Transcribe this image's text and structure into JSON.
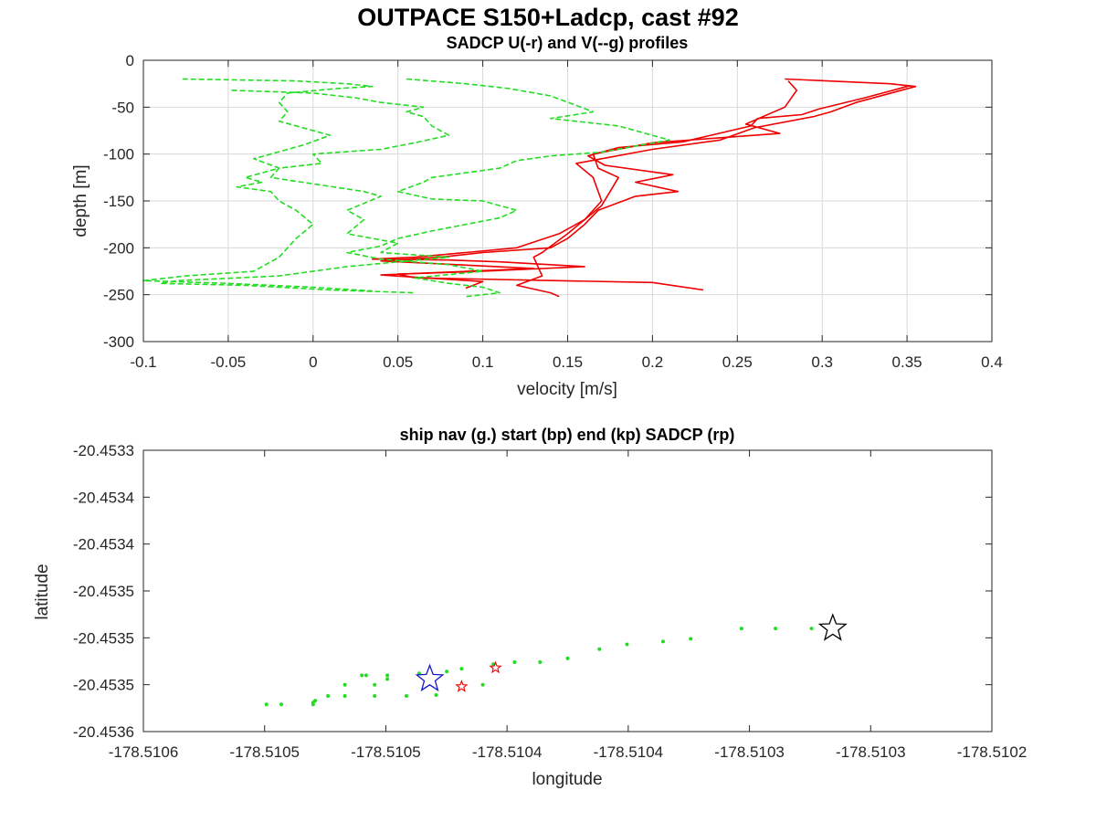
{
  "figure_title": "OUTPACE S150+Ladcp, cast #92",
  "chart_data": [
    {
      "type": "line",
      "title": "SADCP U(-r) and V(--g) profiles",
      "xlabel": "velocity [m/s]",
      "ylabel": "depth [m]",
      "xlim": [
        -0.1,
        0.4
      ],
      "ylim": [
        -300,
        0
      ],
      "xticks": [
        "-0.1",
        "-0.05",
        "0",
        "0.05",
        "0.1",
        "0.15",
        "0.2",
        "0.25",
        "0.3",
        "0.35",
        "0.4"
      ],
      "yticks": [
        "0",
        "-50",
        "-100",
        "-150",
        "-200",
        "-250",
        "-300"
      ],
      "grid": true,
      "colors": {
        "u": "#ee0000",
        "v": "#22dd22"
      },
      "series": [
        {
          "style": "solid",
          "color": "#ee0000",
          "points": [
            [
              0.278,
              -20
            ],
            [
              0.34,
              -25
            ],
            [
              0.355,
              -28
            ],
            [
              0.32,
              -45
            ],
            [
              0.305,
              -55
            ],
            [
              0.295,
              -60
            ],
            [
              0.26,
              -72
            ],
            [
              0.24,
              -85
            ],
            [
              0.2,
              -95
            ],
            [
              0.17,
              -105
            ],
            [
              0.155,
              -110
            ],
            [
              0.165,
              -125
            ],
            [
              0.17,
              -150
            ],
            [
              0.16,
              -170
            ],
            [
              0.15,
              -185
            ],
            [
              0.135,
              -205
            ],
            [
              0.13,
              -210
            ],
            [
              0.135,
              -230
            ],
            [
              0.12,
              -240
            ],
            [
              0.14,
              -248
            ],
            [
              0.145,
              -252
            ]
          ]
        },
        {
          "style": "solid",
          "color": "#ee0000",
          "points": [
            [
              0.28,
              -22
            ],
            [
              0.285,
              -32
            ],
            [
              0.278,
              -50
            ],
            [
              0.255,
              -68
            ],
            [
              0.275,
              -78
            ],
            [
              0.2,
              -88
            ],
            [
              0.165,
              -100
            ],
            [
              0.168,
              -115
            ],
            [
              0.18,
              -125
            ],
            [
              0.175,
              -140
            ],
            [
              0.17,
              -155
            ],
            [
              0.16,
              -170
            ],
            [
              0.145,
              -185
            ],
            [
              0.12,
              -200
            ],
            [
              0.09,
              -205
            ],
            [
              0.06,
              -210
            ],
            [
              0.035,
              -212
            ],
            [
              0.08,
              -213
            ],
            [
              0.11,
              -215
            ],
            [
              0.16,
              -220
            ],
            [
              0.1,
              -225
            ],
            [
              0.05,
              -228
            ],
            [
              0.06,
              -232
            ],
            [
              0.2,
              -237
            ],
            [
              0.23,
              -245
            ]
          ]
        },
        {
          "style": "solid",
          "color": "#ee0000",
          "points": [
            [
              0.352,
              -27
            ],
            [
              0.325,
              -40
            ],
            [
              0.298,
              -52
            ],
            [
              0.288,
              -58
            ],
            [
              0.262,
              -62
            ],
            [
              0.258,
              -70
            ],
            [
              0.218,
              -87
            ],
            [
              0.18,
              -93
            ],
            [
              0.162,
              -102
            ],
            [
              0.172,
              -112
            ],
            [
              0.212,
              -122
            ],
            [
              0.19,
              -130
            ],
            [
              0.215,
              -140
            ],
            [
              0.19,
              -145
            ],
            [
              0.168,
              -160
            ],
            [
              0.16,
              -175
            ],
            [
              0.15,
              -190
            ],
            [
              0.14,
              -200
            ],
            [
              0.1,
              -205
            ],
            [
              0.075,
              -210
            ],
            [
              0.04,
              -214
            ],
            [
              0.085,
              -218
            ],
            [
              0.13,
              -222
            ],
            [
              0.04,
              -229
            ],
            [
              0.1,
              -236
            ],
            [
              0.09,
              -243
            ]
          ]
        },
        {
          "style": "dashed",
          "color": "#22dd22",
          "points": [
            [
              -0.077,
              -20
            ],
            [
              -0.01,
              -22
            ],
            [
              0.02,
              -25
            ],
            [
              0.035,
              -28
            ],
            [
              0.015,
              -30
            ],
            [
              -0.015,
              -35
            ],
            [
              -0.02,
              -45
            ],
            [
              -0.015,
              -55
            ],
            [
              -0.02,
              -65
            ],
            [
              0.01,
              -80
            ],
            [
              -0.005,
              -90
            ],
            [
              -0.025,
              -100
            ],
            [
              -0.035,
              -105
            ],
            [
              -0.02,
              -115
            ],
            [
              -0.04,
              -125
            ],
            [
              -0.03,
              -130
            ],
            [
              -0.045,
              -135
            ],
            [
              -0.025,
              -140
            ],
            [
              -0.02,
              -150
            ],
            [
              -0.01,
              -160
            ],
            [
              0.0,
              -175
            ],
            [
              -0.01,
              -190
            ],
            [
              -0.02,
              -210
            ],
            [
              -0.035,
              -225
            ],
            [
              -0.075,
              -230
            ],
            [
              -0.1,
              -235
            ],
            [
              -0.05,
              -238
            ],
            [
              0.0,
              -242
            ],
            [
              0.035,
              -246
            ]
          ]
        },
        {
          "style": "dashed",
          "color": "#22dd22",
          "points": [
            [
              -0.048,
              -32
            ],
            [
              0.0,
              -35
            ],
            [
              0.025,
              -40
            ],
            [
              0.04,
              -45
            ],
            [
              0.065,
              -50
            ],
            [
              0.055,
              -55
            ],
            [
              0.065,
              -60
            ],
            [
              0.07,
              -70
            ],
            [
              0.08,
              -80
            ],
            [
              0.06,
              -88
            ],
            [
              0.04,
              -95
            ],
            [
              0.0,
              -100
            ],
            [
              0.005,
              -110
            ],
            [
              -0.02,
              -115
            ],
            [
              -0.025,
              -125
            ],
            [
              0.03,
              -140
            ],
            [
              0.04,
              -145
            ],
            [
              0.02,
              -160
            ],
            [
              0.03,
              -170
            ],
            [
              0.02,
              -185
            ],
            [
              0.05,
              -195
            ],
            [
              0.04,
              -205
            ],
            [
              0.08,
              -210
            ],
            [
              0.02,
              -220
            ],
            [
              -0.02,
              -230
            ],
            [
              -0.08,
              -235
            ],
            [
              -0.09,
              -238
            ],
            [
              -0.04,
              -240
            ],
            [
              0.01,
              -245
            ],
            [
              0.06,
              -248
            ]
          ]
        },
        {
          "style": "dashed",
          "color": "#22dd22",
          "points": [
            [
              0.055,
              -20
            ],
            [
              0.09,
              -25
            ],
            [
              0.115,
              -30
            ],
            [
              0.14,
              -38
            ],
            [
              0.155,
              -48
            ],
            [
              0.165,
              -55
            ],
            [
              0.14,
              -62
            ],
            [
              0.18,
              -70
            ],
            [
              0.21,
              -85
            ],
            [
              0.17,
              -98
            ],
            [
              0.14,
              -102
            ],
            [
              0.12,
              -107
            ],
            [
              0.11,
              -115
            ],
            [
              0.09,
              -120
            ],
            [
              0.07,
              -125
            ],
            [
              0.065,
              -130
            ],
            [
              0.05,
              -140
            ],
            [
              0.07,
              -148
            ],
            [
              0.1,
              -150
            ],
            [
              0.12,
              -160
            ],
            [
              0.11,
              -168
            ],
            [
              0.09,
              -175
            ],
            [
              0.07,
              -182
            ],
            [
              0.05,
              -190
            ],
            [
              0.04,
              -198
            ],
            [
              0.02,
              -205
            ],
            [
              0.04,
              -212
            ],
            [
              0.08,
              -218
            ],
            [
              0.1,
              -225
            ],
            [
              0.06,
              -232
            ],
            [
              0.08,
              -238
            ],
            [
              0.1,
              -242
            ],
            [
              0.11,
              -248
            ],
            [
              0.09,
              -252
            ]
          ]
        }
      ]
    },
    {
      "type": "scatter",
      "title": "ship nav (g.) start (bp) end (kp) SADCP (rp)",
      "xlabel": "longitude",
      "ylabel": "latitude",
      "xlim": [
        -178.51058,
        -178.51018
      ],
      "ylim": [
        -20.45358,
        -20.45328
      ],
      "xticks": [
        "-178.5106",
        "-178.5105",
        "-178.5105",
        "-178.5104",
        "-178.5104",
        "-178.5103",
        "-178.5103",
        "-178.5102"
      ],
      "yticks": [
        "-20.4533",
        "-20.4534",
        "-20.4534",
        "-20.4535",
        "-20.4535",
        "-20.4535",
        "-20.4536"
      ],
      "grid": false,
      "ship_nav_color": "#22dd22",
      "ship_nav": [
        [
          -178.510522,
          -20.453551
        ],
        [
          -178.510515,
          -20.453551
        ],
        [
          -178.5105,
          -20.453551
        ],
        [
          -178.5105,
          -20.453549
        ],
        [
          -178.510499,
          -20.453547
        ],
        [
          -178.510493,
          -20.453542
        ],
        [
          -178.510485,
          -20.453542
        ],
        [
          -178.510471,
          -20.453542
        ],
        [
          -178.510456,
          -20.453542
        ],
        [
          -178.510442,
          -20.453541
        ],
        [
          -178.510485,
          -20.45353
        ],
        [
          -178.510471,
          -20.45353
        ],
        [
          -178.510465,
          -20.453524
        ],
        [
          -178.510465,
          -20.45352
        ],
        [
          -178.510475,
          -20.45352
        ],
        [
          -178.510477,
          -20.45352
        ],
        [
          -178.51045,
          -20.453518
        ],
        [
          -178.510437,
          -20.453516
        ],
        [
          -178.51043,
          -20.453513
        ],
        [
          -178.51042,
          -20.45353
        ],
        [
          -178.510415,
          -20.453508
        ],
        [
          -178.510405,
          -20.453506
        ],
        [
          -178.510393,
          -20.453506
        ],
        [
          -178.51038,
          -20.453502
        ],
        [
          -178.510365,
          -20.453492
        ],
        [
          -178.510352,
          -20.453487
        ],
        [
          -178.510335,
          -20.453484
        ],
        [
          -178.510322,
          -20.453481
        ],
        [
          -178.510298,
          -20.45347
        ],
        [
          -178.510282,
          -20.45347
        ],
        [
          -178.510265,
          -20.45347
        ]
      ],
      "start_color": "#1515c8",
      "start": [
        -178.510445,
        -20.453524
      ],
      "end_color": "#000000",
      "end": [
        -178.510255,
        -20.45347
      ],
      "sadcp_color": "#ee0000",
      "sadcp": [
        [
          -178.510414,
          -20.453512
        ],
        [
          -178.51043,
          -20.453532
        ]
      ]
    }
  ]
}
